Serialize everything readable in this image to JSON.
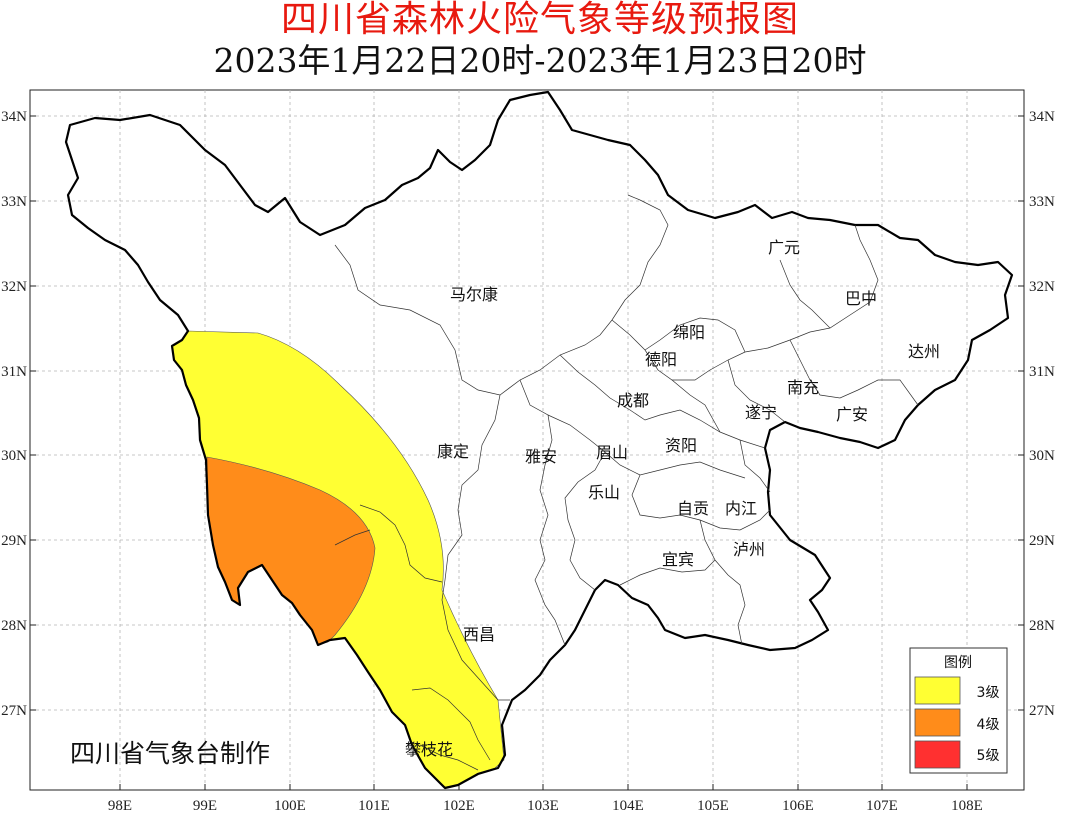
{
  "title": "四川省森林火险气象等级预报图",
  "subtitle": "2023年1月22日20时-2023年1月23日20时",
  "credit": "四川省气象台制作",
  "lon_labels": [
    "98E",
    "99E",
    "100E",
    "101E",
    "102E",
    "103E",
    "104E",
    "105E",
    "106E",
    "107E",
    "108E"
  ],
  "lat_labels": [
    "34N",
    "33N",
    "32N",
    "31N",
    "30N",
    "29N",
    "28N",
    "27N"
  ],
  "cities": [
    {
      "name": "广元"
    },
    {
      "name": "巴中"
    },
    {
      "name": "马尔康"
    },
    {
      "name": "绵阳"
    },
    {
      "name": "德阳"
    },
    {
      "name": "达州"
    },
    {
      "name": "南充"
    },
    {
      "name": "成都"
    },
    {
      "name": "遂宁"
    },
    {
      "name": "广安"
    },
    {
      "name": "康定"
    },
    {
      "name": "雅安"
    },
    {
      "name": "眉山"
    },
    {
      "name": "资阳"
    },
    {
      "name": "乐山"
    },
    {
      "name": "自贡"
    },
    {
      "name": "内江"
    },
    {
      "name": "宜宾"
    },
    {
      "name": "泸州"
    },
    {
      "name": "西昌"
    },
    {
      "name": "攀枝花"
    }
  ],
  "legend": {
    "title": "图例",
    "items": [
      {
        "label": "3级",
        "color": "#ffff33"
      },
      {
        "label": "4级",
        "color": "#ff8c1a"
      },
      {
        "label": "5级",
        "color": "#ff3030"
      }
    ]
  }
}
